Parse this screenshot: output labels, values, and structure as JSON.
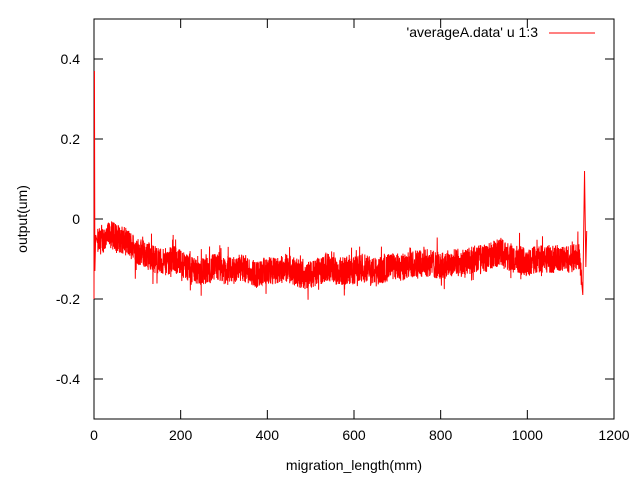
{
  "chart_data": {
    "type": "line",
    "xlabel": "migration_length(mm)",
    "ylabel": "output(um)",
    "xlim": [
      0,
      1200
    ],
    "ylim": [
      -0.5,
      0.5
    ],
    "x_ticks": [
      0,
      200,
      400,
      600,
      800,
      1000,
      1200
    ],
    "x_tick_labels": [
      "0",
      "200",
      "400",
      "600",
      "800",
      "1000",
      "1200"
    ],
    "y_ticks": [
      -0.4,
      -0.2,
      0,
      0.2,
      0.4
    ],
    "y_tick_labels": [
      "-0.4",
      "-0.2",
      "0",
      "0.2",
      "0.4"
    ],
    "grid": false,
    "legend_position": "top-right",
    "colors": {
      "series": "#ff0000",
      "axis": "#000000"
    },
    "series": [
      {
        "name": "'averageA.data' u 1:3",
        "color": "#ff0000",
        "x": [
          0,
          1,
          2,
          4,
          8,
          20,
          40,
          60,
          80,
          100,
          120,
          140,
          160,
          180,
          200,
          220,
          240,
          260,
          280,
          300,
          320,
          340,
          360,
          380,
          400,
          420,
          440,
          460,
          480,
          500,
          520,
          540,
          560,
          580,
          600,
          620,
          640,
          660,
          680,
          700,
          720,
          740,
          760,
          780,
          800,
          820,
          840,
          860,
          880,
          900,
          920,
          940,
          960,
          980,
          1000,
          1020,
          1040,
          1060,
          1080,
          1100,
          1120,
          1128,
          1132,
          1135,
          1137
        ],
        "y": [
          -0.2,
          0.37,
          -0.13,
          -0.04,
          -0.06,
          -0.05,
          -0.04,
          -0.05,
          -0.06,
          -0.08,
          -0.09,
          -0.1,
          -0.11,
          -0.1,
          -0.11,
          -0.12,
          -0.13,
          -0.13,
          -0.12,
          -0.13,
          -0.13,
          -0.12,
          -0.13,
          -0.14,
          -0.13,
          -0.13,
          -0.12,
          -0.13,
          -0.14,
          -0.14,
          -0.13,
          -0.12,
          -0.13,
          -0.13,
          -0.13,
          -0.12,
          -0.13,
          -0.13,
          -0.12,
          -0.12,
          -0.12,
          -0.11,
          -0.11,
          -0.11,
          -0.12,
          -0.11,
          -0.11,
          -0.11,
          -0.1,
          -0.1,
          -0.09,
          -0.08,
          -0.1,
          -0.1,
          -0.11,
          -0.1,
          -0.1,
          -0.1,
          -0.1,
          -0.1,
          -0.09,
          -0.19,
          0.12,
          -0.12,
          -0.03
        ]
      }
    ]
  }
}
